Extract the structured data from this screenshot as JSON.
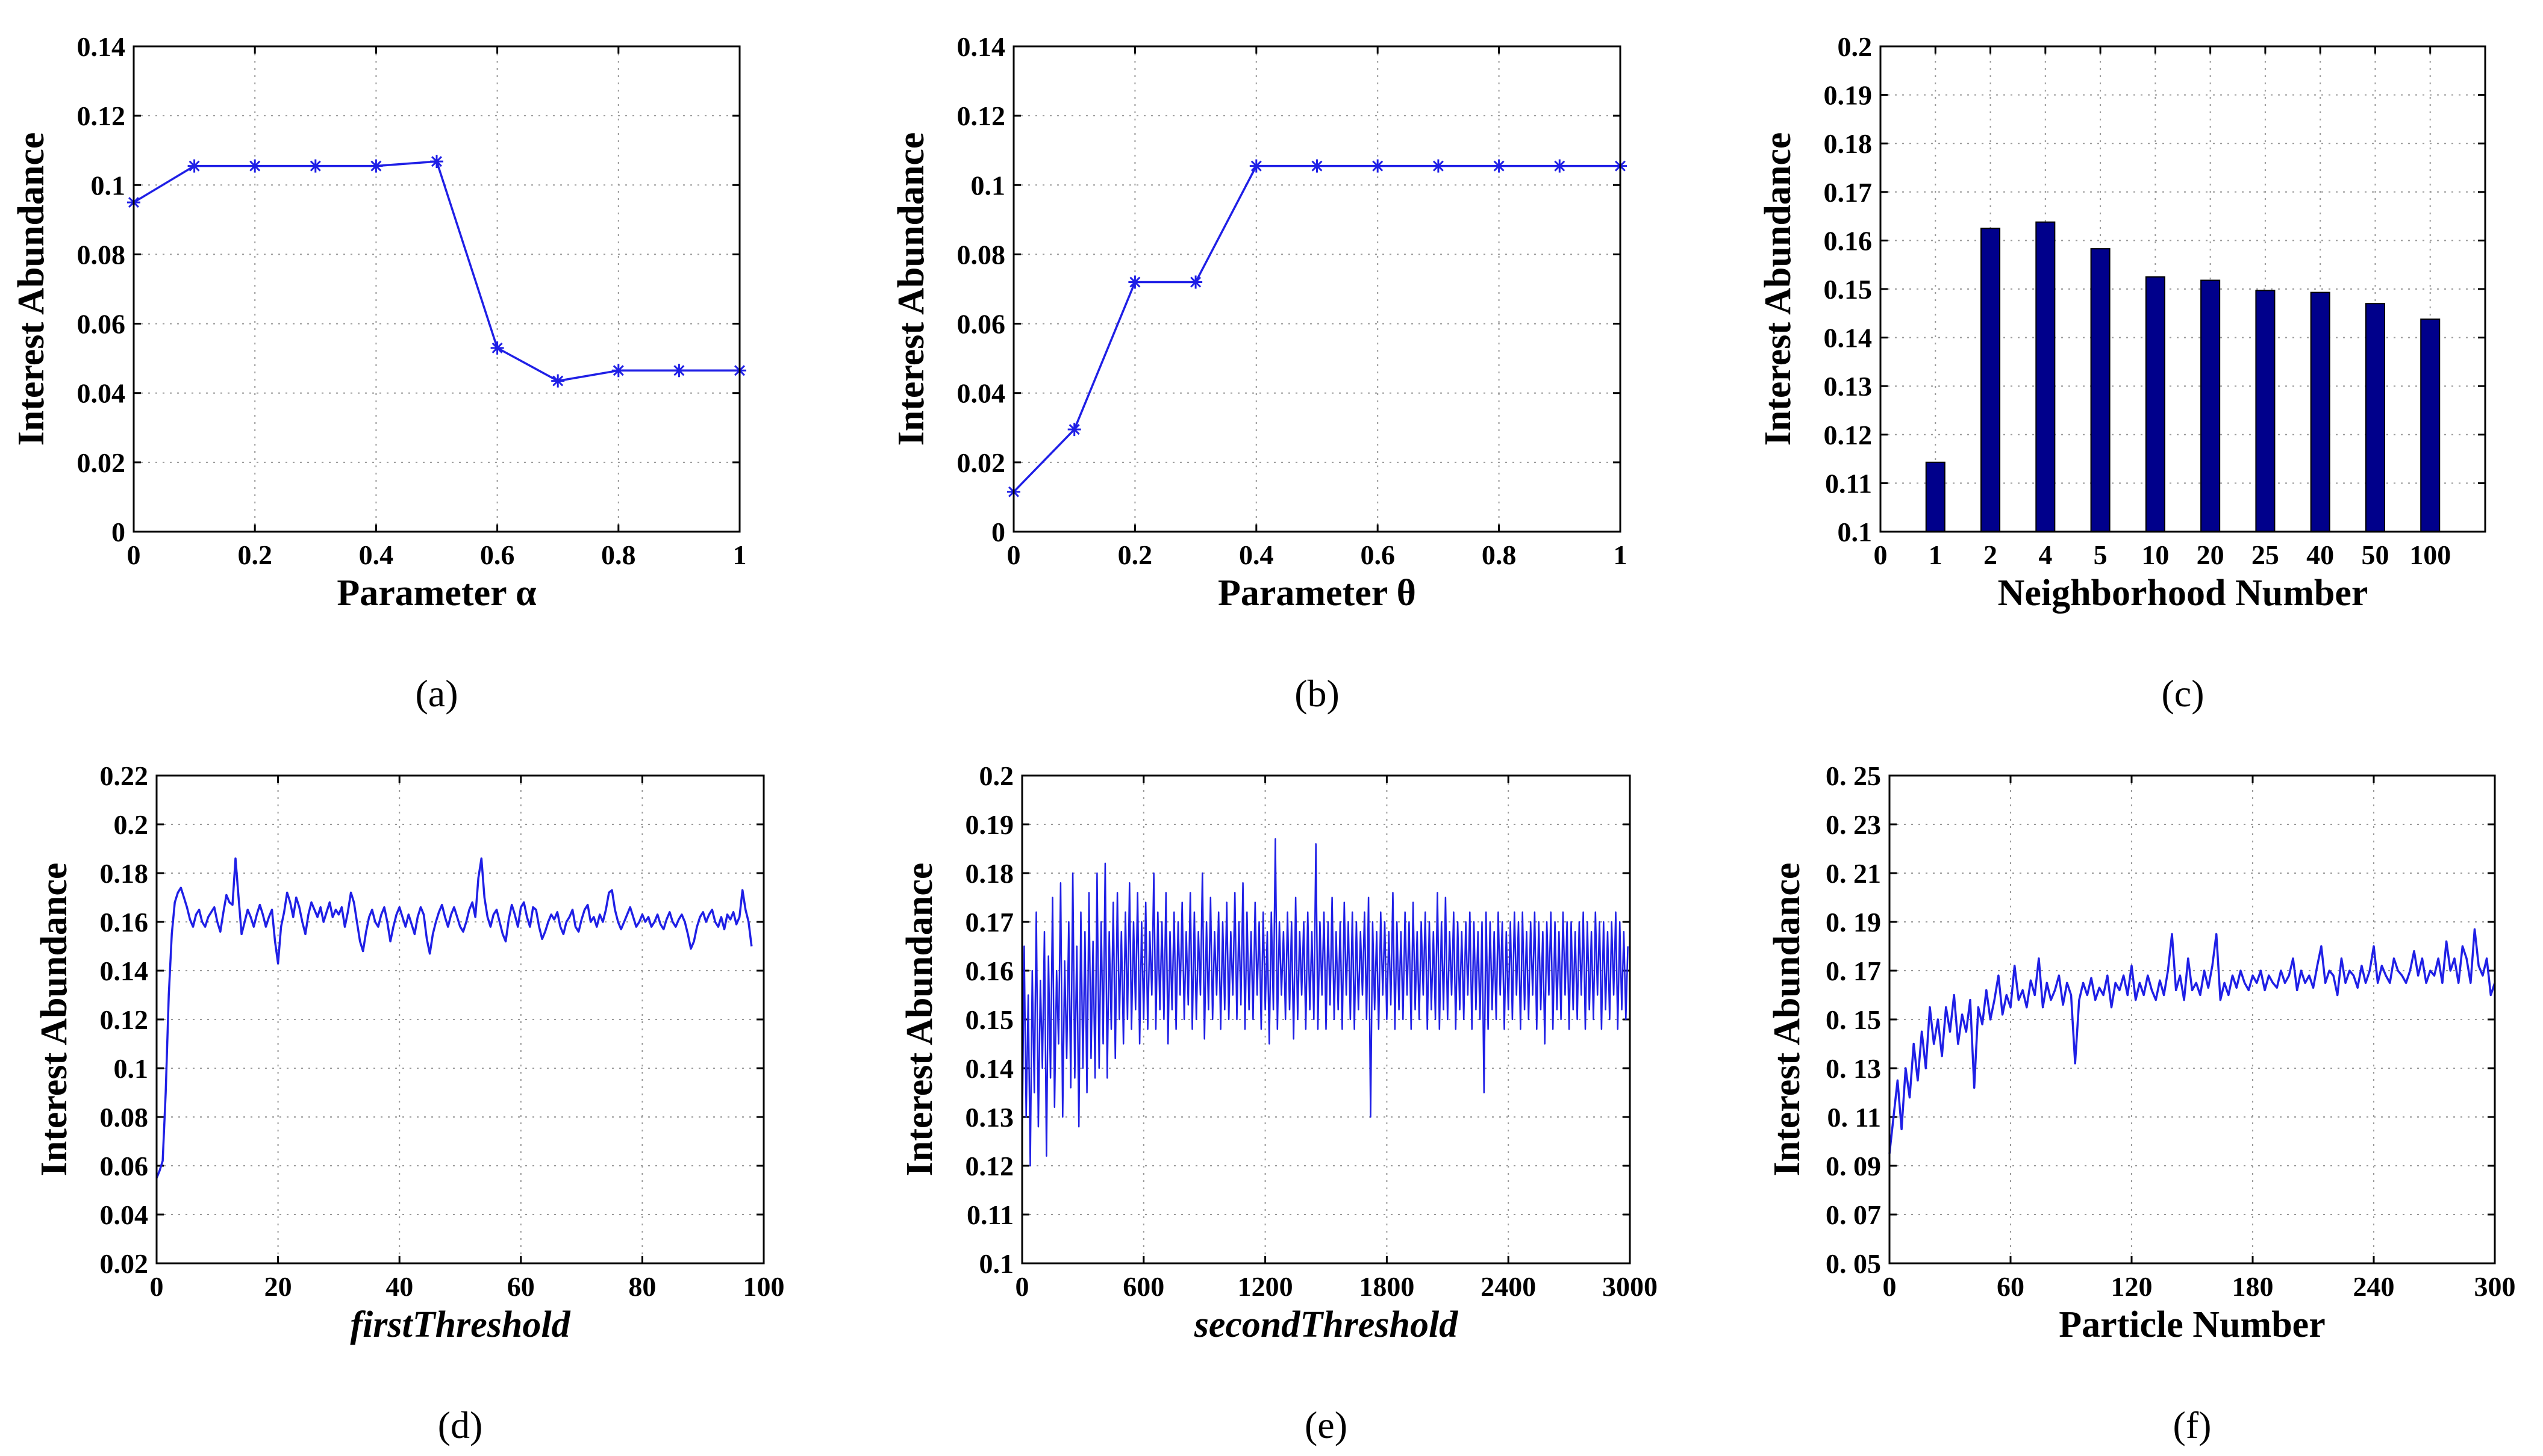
{
  "chart_data": [
    {
      "id": "a",
      "type": "line",
      "caption": "(a)",
      "xlabel": "Parameter α",
      "ylabel": "Interest Abundance",
      "x": [
        0,
        0.1,
        0.2,
        0.3,
        0.4,
        0.5,
        0.6,
        0.7,
        0.8,
        0.9,
        1
      ],
      "series": [
        {
          "name": "Interest Abundance",
          "values": [
            0.095,
            0.1055,
            0.1055,
            0.1055,
            0.1055,
            0.1068,
            0.053,
            0.0435,
            0.0465,
            0.0465,
            0.0465
          ]
        }
      ],
      "xlim": [
        0,
        1
      ],
      "ylim": [
        0,
        0.14
      ],
      "xticks": [
        0,
        0.2,
        0.4,
        0.6,
        0.8,
        1
      ],
      "xtick_labels": [
        "0",
        "0.2",
        "0.4",
        "0.6",
        "0.8",
        "1"
      ],
      "yticks": [
        0,
        0.02,
        0.04,
        0.06,
        0.08,
        0.1,
        0.12,
        0.14
      ],
      "ytick_labels": [
        "0",
        "0.02",
        "0.04",
        "0.06",
        "0.08",
        "0.1",
        "0.12",
        "0.14"
      ],
      "marker": "*",
      "grid": true,
      "color": "#1f1fe6"
    },
    {
      "id": "b",
      "type": "line",
      "caption": "(b)",
      "xlabel": "Parameter θ",
      "ylabel": "Interest Abundance",
      "x": [
        0,
        0.1,
        0.2,
        0.3,
        0.4,
        0.5,
        0.6,
        0.7,
        0.8,
        0.9,
        1
      ],
      "series": [
        {
          "name": "Interest Abundance",
          "values": [
            0.0115,
            0.0295,
            0.072,
            0.072,
            0.1055,
            0.1055,
            0.1055,
            0.1055,
            0.1055,
            0.1055,
            0.1055
          ]
        }
      ],
      "xlim": [
        0,
        1
      ],
      "ylim": [
        0,
        0.14
      ],
      "xticks": [
        0,
        0.2,
        0.4,
        0.6,
        0.8,
        1
      ],
      "xtick_labels": [
        "0",
        "0.2",
        "0.4",
        "0.6",
        "0.8",
        "1"
      ],
      "yticks": [
        0,
        0.02,
        0.04,
        0.06,
        0.08,
        0.1,
        0.12,
        0.14
      ],
      "ytick_labels": [
        "0",
        "0.02",
        "0.04",
        "0.06",
        "0.08",
        "0.1",
        "0.12",
        "0.14"
      ],
      "marker": "*",
      "grid": true,
      "color": "#1f1fe6"
    },
    {
      "id": "c",
      "type": "bar",
      "caption": "(c)",
      "xlabel": "Neighborhood Number",
      "ylabel": "Interest Abundance",
      "categories": [
        "1",
        "2",
        "4",
        "5",
        "10",
        "20",
        "25",
        "40",
        "50",
        "100"
      ],
      "values": [
        0.1143,
        0.1625,
        0.1638,
        0.1583,
        0.1525,
        0.1518,
        0.1497,
        0.1493,
        0.147,
        0.1438
      ],
      "xtick_labels": [
        "0",
        "1",
        "2",
        "4",
        "5",
        "10",
        "20",
        "25",
        "40",
        "50",
        "100"
      ],
      "ylim": [
        0.1,
        0.2
      ],
      "yticks": [
        0.1,
        0.11,
        0.12,
        0.13,
        0.14,
        0.15,
        0.16,
        0.17,
        0.18,
        0.19,
        0.2
      ],
      "ytick_labels": [
        "0.1",
        "0.11",
        "0.12",
        "0.13",
        "0.14",
        "0.15",
        "0.16",
        "0.17",
        "0.18",
        "0.19",
        "0.2"
      ],
      "grid": true,
      "color": "#00008b"
    },
    {
      "id": "d",
      "type": "line",
      "caption": "(d)",
      "xlabel": "firstThreshold",
      "ylabel": "Interest Abundance",
      "xlim": [
        0,
        100
      ],
      "ylim": [
        0.02,
        0.22
      ],
      "xticks": [
        0,
        20,
        40,
        60,
        80,
        100
      ],
      "xtick_labels": [
        "0",
        "20",
        "40",
        "60",
        "80",
        "100"
      ],
      "yticks": [
        0.02,
        0.04,
        0.06,
        0.08,
        0.1,
        0.12,
        0.14,
        0.16,
        0.18,
        0.2,
        0.22
      ],
      "ytick_labels": [
        "0.02",
        "0.04",
        "0.06",
        "0.08",
        "0.1",
        "0.12",
        "0.14",
        "0.16",
        "0.18",
        "0.2",
        "0.22"
      ],
      "series": [
        {
          "name": "Interest Abundance",
          "start": 0,
          "step": 0.5,
          "values": [
            0.055,
            0.058,
            0.062,
            0.09,
            0.13,
            0.155,
            0.168,
            0.172,
            0.174,
            0.17,
            0.166,
            0.161,
            0.158,
            0.163,
            0.165,
            0.16,
            0.158,
            0.162,
            0.164,
            0.166,
            0.16,
            0.156,
            0.164,
            0.171,
            0.168,
            0.167,
            0.186,
            0.17,
            0.155,
            0.16,
            0.165,
            0.162,
            0.158,
            0.163,
            0.167,
            0.163,
            0.158,
            0.162,
            0.165,
            0.152,
            0.143,
            0.158,
            0.164,
            0.172,
            0.168,
            0.162,
            0.17,
            0.166,
            0.16,
            0.155,
            0.163,
            0.168,
            0.165,
            0.162,
            0.166,
            0.16,
            0.164,
            0.168,
            0.162,
            0.165,
            0.163,
            0.166,
            0.158,
            0.164,
            0.172,
            0.168,
            0.16,
            0.152,
            0.148,
            0.156,
            0.162,
            0.165,
            0.16,
            0.158,
            0.163,
            0.166,
            0.16,
            0.152,
            0.158,
            0.163,
            0.166,
            0.162,
            0.158,
            0.163,
            0.159,
            0.155,
            0.162,
            0.166,
            0.163,
            0.153,
            0.147,
            0.155,
            0.16,
            0.164,
            0.167,
            0.162,
            0.158,
            0.163,
            0.166,
            0.162,
            0.158,
            0.156,
            0.16,
            0.165,
            0.168,
            0.162,
            0.178,
            0.186,
            0.17,
            0.162,
            0.158,
            0.163,
            0.165,
            0.16,
            0.155,
            0.152,
            0.161,
            0.167,
            0.163,
            0.158,
            0.166,
            0.168,
            0.162,
            0.158,
            0.166,
            0.165,
            0.158,
            0.153,
            0.156,
            0.16,
            0.163,
            0.161,
            0.164,
            0.158,
            0.155,
            0.16,
            0.162,
            0.165,
            0.158,
            0.156,
            0.161,
            0.165,
            0.167,
            0.16,
            0.162,
            0.158,
            0.163,
            0.16,
            0.165,
            0.172,
            0.173,
            0.165,
            0.16,
            0.157,
            0.16,
            0.163,
            0.166,
            0.162,
            0.158,
            0.16,
            0.163,
            0.16,
            0.162,
            0.158,
            0.16,
            0.163,
            0.159,
            0.157,
            0.161,
            0.164,
            0.16,
            0.158,
            0.161,
            0.163,
            0.16,
            0.155,
            0.149,
            0.152,
            0.158,
            0.162,
            0.164,
            0.16,
            0.163,
            0.165,
            0.16,
            0.158,
            0.162,
            0.157,
            0.163,
            0.161,
            0.164,
            0.159,
            0.162,
            0.173,
            0.165,
            0.16,
            0.15
          ]
        }
      ],
      "grid": true,
      "color": "#1f1fe6"
    },
    {
      "id": "e",
      "type": "line",
      "caption": "(e)",
      "xlabel": "secondThreshold",
      "ylabel": "Interest Abundance",
      "xlim": [
        0,
        3000
      ],
      "ylim": [
        0.1,
        0.2
      ],
      "xticks": [
        0,
        600,
        1200,
        1800,
        2400,
        3000
      ],
      "xtick_labels": [
        "0",
        "600",
        "1200",
        "1800",
        "2400",
        "3000"
      ],
      "yticks": [
        0.1,
        0.11,
        0.12,
        0.13,
        0.14,
        0.15,
        0.16,
        0.17,
        0.18,
        0.19,
        0.2
      ],
      "ytick_labels": [
        "0.1",
        "0.11",
        "0.12",
        "0.13",
        "0.14",
        "0.15",
        "0.16",
        "0.17",
        "0.18",
        "0.19",
        "0.2"
      ],
      "series": [
        {
          "name": "Interest Abundance",
          "start": 0,
          "step": 10,
          "values": [
            0.125,
            0.165,
            0.13,
            0.155,
            0.12,
            0.16,
            0.135,
            0.172,
            0.128,
            0.158,
            0.14,
            0.168,
            0.122,
            0.163,
            0.138,
            0.175,
            0.132,
            0.16,
            0.145,
            0.178,
            0.13,
            0.162,
            0.142,
            0.17,
            0.136,
            0.18,
            0.138,
            0.165,
            0.128,
            0.172,
            0.14,
            0.168,
            0.135,
            0.176,
            0.142,
            0.166,
            0.138,
            0.18,
            0.14,
            0.17,
            0.145,
            0.182,
            0.138,
            0.168,
            0.148,
            0.174,
            0.142,
            0.176,
            0.15,
            0.168,
            0.145,
            0.172,
            0.15,
            0.178,
            0.148,
            0.17,
            0.152,
            0.176,
            0.145,
            0.17,
            0.15,
            0.174,
            0.148,
            0.168,
            0.155,
            0.18,
            0.148,
            0.172,
            0.152,
            0.17,
            0.15,
            0.176,
            0.145,
            0.168,
            0.152,
            0.172,
            0.148,
            0.17,
            0.155,
            0.174,
            0.15,
            0.168,
            0.153,
            0.176,
            0.148,
            0.172,
            0.15,
            0.168,
            0.155,
            0.18,
            0.146,
            0.17,
            0.152,
            0.175,
            0.15,
            0.168,
            0.155,
            0.172,
            0.148,
            0.17,
            0.152,
            0.174,
            0.15,
            0.168,
            0.155,
            0.176,
            0.15,
            0.17,
            0.153,
            0.178,
            0.148,
            0.172,
            0.152,
            0.168,
            0.15,
            0.174,
            0.155,
            0.17,
            0.148,
            0.172,
            0.152,
            0.168,
            0.145,
            0.172,
            0.152,
            0.187,
            0.148,
            0.17,
            0.155,
            0.168,
            0.15,
            0.172,
            0.152,
            0.17,
            0.146,
            0.175,
            0.15,
            0.168,
            0.155,
            0.17,
            0.148,
            0.172,
            0.152,
            0.168,
            0.15,
            0.186,
            0.148,
            0.17,
            0.155,
            0.172,
            0.148,
            0.17,
            0.153,
            0.175,
            0.15,
            0.168,
            0.152,
            0.17,
            0.148,
            0.174,
            0.155,
            0.17,
            0.15,
            0.172,
            0.148,
            0.17,
            0.152,
            0.168,
            0.155,
            0.172,
            0.15,
            0.175,
            0.13,
            0.17,
            0.152,
            0.168,
            0.148,
            0.172,
            0.155,
            0.17,
            0.15,
            0.168,
            0.153,
            0.176,
            0.148,
            0.17,
            0.152,
            0.168,
            0.15,
            0.172,
            0.155,
            0.17,
            0.148,
            0.174,
            0.152,
            0.168,
            0.15,
            0.17,
            0.155,
            0.172,
            0.148,
            0.17,
            0.152,
            0.168,
            0.15,
            0.176,
            0.148,
            0.17,
            0.152,
            0.175,
            0.15,
            0.168,
            0.155,
            0.172,
            0.148,
            0.17,
            0.152,
            0.168,
            0.15,
            0.17,
            0.155,
            0.172,
            0.148,
            0.17,
            0.152,
            0.168,
            0.15,
            0.17,
            0.135,
            0.172,
            0.148,
            0.17,
            0.152,
            0.168,
            0.15,
            0.172,
            0.155,
            0.17,
            0.148,
            0.168,
            0.152,
            0.17,
            0.15,
            0.172,
            0.155,
            0.17,
            0.148,
            0.172,
            0.152,
            0.168,
            0.15,
            0.17,
            0.155,
            0.172,
            0.148,
            0.17,
            0.152,
            0.168,
            0.145,
            0.17,
            0.155,
            0.172,
            0.148,
            0.17,
            0.152,
            0.168,
            0.15,
            0.172,
            0.155,
            0.17,
            0.148,
            0.17,
            0.152,
            0.168,
            0.15,
            0.17,
            0.155,
            0.172,
            0.148,
            0.17,
            0.152,
            0.168,
            0.15,
            0.172,
            0.155,
            0.17,
            0.148,
            0.17,
            0.152,
            0.168,
            0.15,
            0.17,
            0.155,
            0.172,
            0.148,
            0.17,
            0.152,
            0.168,
            0.15,
            0.165
          ]
        }
      ],
      "grid": true,
      "color": "#1f1fe6"
    },
    {
      "id": "f",
      "type": "line",
      "caption": "(f)",
      "xlabel": "Particle Number",
      "ylabel": "Interest Abundance",
      "xlim": [
        0,
        300
      ],
      "ylim": [
        0.05,
        0.25
      ],
      "xticks": [
        0,
        60,
        120,
        180,
        240,
        300
      ],
      "xtick_labels": [
        "0",
        "60",
        "120",
        "180",
        "240",
        "300"
      ],
      "yticks": [
        0.05,
        0.07,
        0.09,
        0.11,
        0.13,
        0.15,
        0.17,
        0.19,
        0.21,
        0.23,
        0.25
      ],
      "ytick_labels": [
        "0. 05",
        "0. 07",
        "0. 09",
        "0. 11",
        "0. 13",
        "0. 15",
        "0. 17",
        "0. 19",
        "0. 21",
        "0. 23",
        "0. 25"
      ],
      "series": [
        {
          "name": "Interest Abundance",
          "start": 0,
          "step": 2,
          "values": [
            0.095,
            0.11,
            0.125,
            0.105,
            0.13,
            0.118,
            0.14,
            0.125,
            0.145,
            0.13,
            0.155,
            0.14,
            0.15,
            0.135,
            0.155,
            0.145,
            0.16,
            0.14,
            0.152,
            0.145,
            0.158,
            0.122,
            0.155,
            0.148,
            0.162,
            0.15,
            0.158,
            0.168,
            0.152,
            0.16,
            0.155,
            0.172,
            0.158,
            0.162,
            0.155,
            0.166,
            0.16,
            0.175,
            0.155,
            0.165,
            0.158,
            0.162,
            0.168,
            0.156,
            0.165,
            0.16,
            0.132,
            0.158,
            0.165,
            0.16,
            0.167,
            0.158,
            0.163,
            0.16,
            0.168,
            0.155,
            0.165,
            0.162,
            0.168,
            0.16,
            0.172,
            0.158,
            0.165,
            0.16,
            0.168,
            0.162,
            0.158,
            0.166,
            0.16,
            0.17,
            0.185,
            0.162,
            0.168,
            0.158,
            0.175,
            0.162,
            0.165,
            0.16,
            0.17,
            0.163,
            0.172,
            0.185,
            0.158,
            0.165,
            0.16,
            0.168,
            0.163,
            0.17,
            0.165,
            0.162,
            0.168,
            0.165,
            0.17,
            0.162,
            0.168,
            0.165,
            0.163,
            0.17,
            0.165,
            0.168,
            0.175,
            0.162,
            0.17,
            0.165,
            0.168,
            0.163,
            0.172,
            0.18,
            0.165,
            0.17,
            0.168,
            0.16,
            0.175,
            0.165,
            0.17,
            0.168,
            0.163,
            0.172,
            0.165,
            0.17,
            0.18,
            0.165,
            0.172,
            0.168,
            0.165,
            0.175,
            0.17,
            0.168,
            0.165,
            0.17,
            0.178,
            0.168,
            0.175,
            0.165,
            0.17,
            0.168,
            0.175,
            0.165,
            0.182,
            0.17,
            0.175,
            0.165,
            0.18,
            0.175,
            0.165,
            0.187,
            0.172,
            0.168,
            0.175,
            0.16,
            0.165
          ]
        }
      ],
      "grid": true,
      "color": "#1f1fe6"
    }
  ]
}
